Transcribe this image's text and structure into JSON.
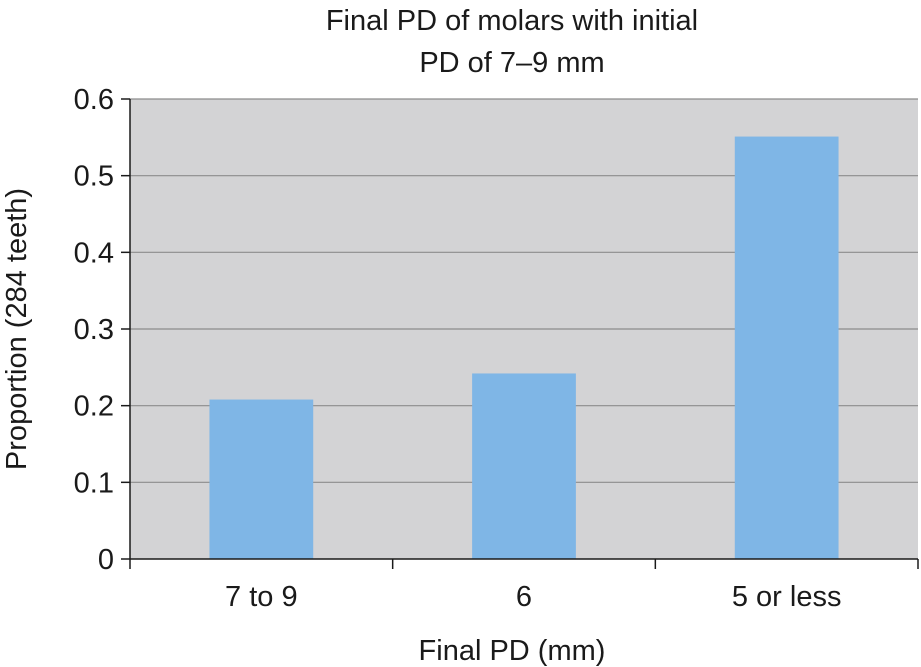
{
  "chart_data": {
    "type": "bar",
    "title_lines": [
      "Final  PD of molars with initial",
      "PD of 7–9 mm"
    ],
    "xlabel": "Final PD (mm)",
    "ylabel": "Proportion (284 teeth)",
    "categories": [
      "7 to 9",
      "6",
      "5 or less"
    ],
    "values": [
      0.208,
      0.242,
      0.551
    ],
    "ylim": [
      0,
      0.6
    ],
    "yticks": [
      "0",
      "0.1",
      "0.2",
      "0.3",
      "0.4",
      "0.5",
      "0.6"
    ],
    "grid": true,
    "legend": "none",
    "colors": {
      "bar": "#7fb6e6",
      "plot_background": "#d3d3d5",
      "gridline": "#8c8c8c",
      "axis": "#1a1a1a"
    }
  }
}
